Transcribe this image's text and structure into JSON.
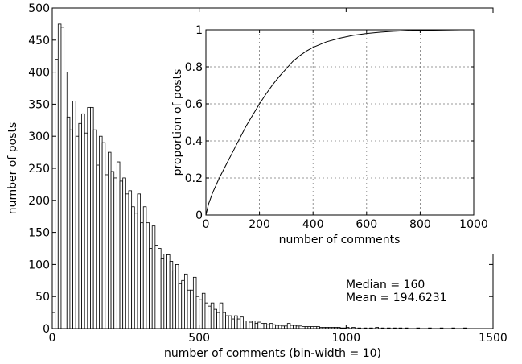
{
  "chart_data": [
    {
      "type": "bar",
      "title": "",
      "xlabel": "number of comments (bin-width = 10)",
      "ylabel": "number of posts",
      "xlim": [
        0,
        1500
      ],
      "ylim": [
        0,
        500
      ],
      "xticks": [
        0,
        500,
        1000,
        1500
      ],
      "yticks": [
        0,
        50,
        100,
        150,
        200,
        250,
        300,
        350,
        400,
        450,
        500
      ],
      "bin_width": 10,
      "bin_starts": [
        0,
        10,
        20,
        30,
        40,
        50,
        60,
        70,
        80,
        90,
        100,
        110,
        120,
        130,
        140,
        150,
        160,
        170,
        180,
        190,
        200,
        210,
        220,
        230,
        240,
        250,
        260,
        270,
        280,
        290,
        300,
        310,
        320,
        330,
        340,
        350,
        360,
        370,
        380,
        390,
        400,
        410,
        420,
        430,
        440,
        450,
        460,
        470,
        480,
        490,
        500,
        510,
        520,
        530,
        540,
        550,
        560,
        570,
        580,
        590,
        600,
        610,
        620,
        630,
        640,
        650,
        660,
        670,
        680,
        690,
        700,
        710,
        720,
        730,
        740,
        750,
        760,
        770,
        780,
        790,
        800,
        810,
        820,
        830,
        840,
        850,
        860,
        870,
        880,
        890,
        900,
        910,
        920,
        930,
        940,
        950,
        960,
        970,
        980,
        990,
        1000,
        1020,
        1040,
        1060,
        1080,
        1100,
        1120,
        1140,
        1160,
        1180,
        1200,
        1240,
        1280,
        1320,
        1360,
        1400
      ],
      "values": [
        25,
        420,
        475,
        470,
        400,
        330,
        310,
        355,
        300,
        320,
        335,
        305,
        345,
        345,
        310,
        255,
        300,
        290,
        240,
        275,
        245,
        235,
        260,
        230,
        235,
        210,
        215,
        190,
        180,
        210,
        165,
        190,
        165,
        125,
        160,
        130,
        125,
        110,
        120,
        115,
        105,
        90,
        100,
        70,
        75,
        85,
        60,
        60,
        80,
        50,
        45,
        55,
        40,
        35,
        40,
        30,
        25,
        40,
        25,
        20,
        20,
        15,
        20,
        15,
        18,
        12,
        12,
        10,
        12,
        8,
        10,
        8,
        8,
        6,
        8,
        6,
        5,
        5,
        4,
        4,
        8,
        5,
        5,
        4,
        4,
        3,
        3,
        3,
        3,
        3,
        3,
        2,
        2,
        2,
        2,
        2,
        2,
        2,
        1,
        1,
        2,
        2,
        1,
        1,
        1,
        2,
        1,
        1,
        1,
        1,
        1,
        1,
        1,
        1,
        1,
        1
      ],
      "annotations": [
        "Median = 160",
        "Mean = 194.6231"
      ]
    },
    {
      "type": "line",
      "title": "",
      "xlabel": "number of comments",
      "ylabel": "proportion of posts",
      "xlim": [
        0,
        1000
      ],
      "ylim": [
        0,
        1
      ],
      "xticks": [
        0,
        200,
        400,
        600,
        800,
        1000
      ],
      "yticks": [
        0,
        0.2,
        0.4,
        0.6,
        0.8,
        1
      ],
      "yticklabels": [
        "0",
        "0.2",
        "0.4",
        "0.6",
        "0.8",
        "1"
      ],
      "grid": true,
      "x": [
        0,
        10,
        25,
        50,
        75,
        100,
        125,
        150,
        175,
        200,
        225,
        250,
        275,
        300,
        325,
        350,
        375,
        400,
        450,
        500,
        550,
        600,
        650,
        700,
        750,
        800,
        850,
        900,
        950,
        1000
      ],
      "y": [
        0,
        0.06,
        0.12,
        0.2,
        0.27,
        0.34,
        0.41,
        0.48,
        0.54,
        0.6,
        0.655,
        0.705,
        0.75,
        0.79,
        0.83,
        0.86,
        0.885,
        0.905,
        0.935,
        0.955,
        0.97,
        0.98,
        0.987,
        0.992,
        0.995,
        0.997,
        0.998,
        0.999,
        1.0,
        1.0
      ]
    }
  ]
}
